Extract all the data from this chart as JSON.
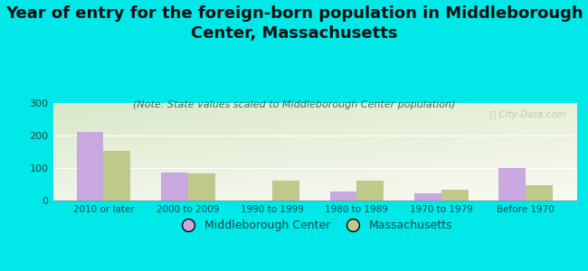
{
  "title": "Year of entry for the foreign-born population in Middleborough\nCenter, Massachusetts",
  "subtitle": "(Note: State values scaled to Middleborough Center population)",
  "categories": [
    "2010 or later",
    "2000 to 2009",
    "1990 to 1999",
    "1980 to 1989",
    "1970 to 1979",
    "Before 1970"
  ],
  "middleborough": [
    210,
    87,
    0,
    28,
    22,
    101
  ],
  "massachusetts": [
    152,
    83,
    62,
    62,
    32,
    48
  ],
  "color_middleborough": "#c9a8e0",
  "color_massachusetts": "#bfc98a",
  "bg_color": "#00e8e8",
  "ylim": [
    0,
    300
  ],
  "yticks": [
    0,
    100,
    200,
    300
  ],
  "legend_labels": [
    "Middleborough Center",
    "Massachusetts"
  ],
  "watermark": "ⓘ City-Data.com",
  "title_fontsize": 13,
  "subtitle_fontsize": 8,
  "bar_width": 0.32
}
